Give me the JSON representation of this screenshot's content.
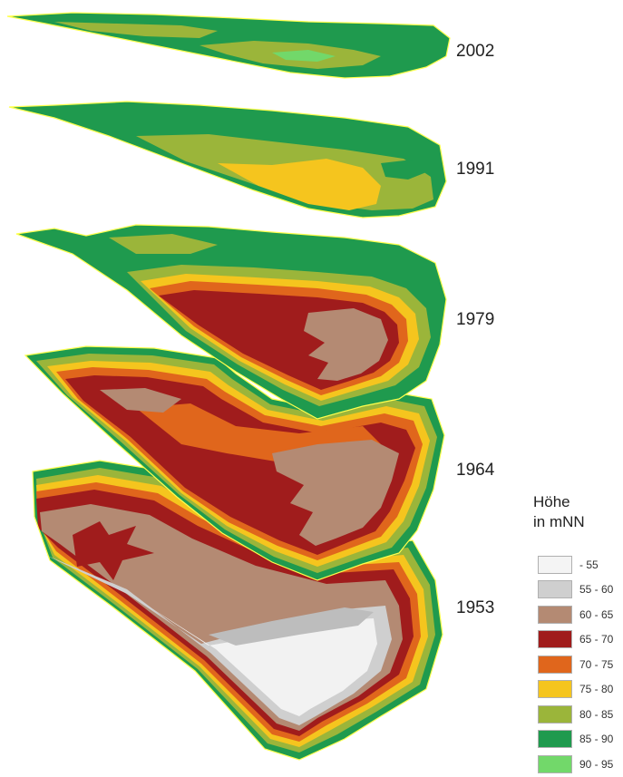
{
  "legend": {
    "title_line1": "Höhe",
    "title_line2": "in mNN",
    "classes": [
      {
        "label": "- 55",
        "color": "#f4f4f4"
      },
      {
        "label": "55 - 60",
        "color": "#cfcfcf"
      },
      {
        "label": "60 - 65",
        "color": "#b48a73"
      },
      {
        "label": "65 - 70",
        "color": "#a01c1c"
      },
      {
        "label": "70 - 75",
        "color": "#e0661c"
      },
      {
        "label": "75 - 80",
        "color": "#f5c51e"
      },
      {
        "label": "80 - 85",
        "color": "#9bb53a"
      },
      {
        "label": "85 - 90",
        "color": "#1f9a4e"
      },
      {
        "label": "90 - 95",
        "color": "#72d86a"
      }
    ]
  },
  "layers": [
    {
      "year": "2002"
    },
    {
      "year": "1991"
    },
    {
      "year": "1979"
    },
    {
      "year": "1964"
    },
    {
      "year": "1953"
    }
  ],
  "outline_color": "#ffff4d"
}
